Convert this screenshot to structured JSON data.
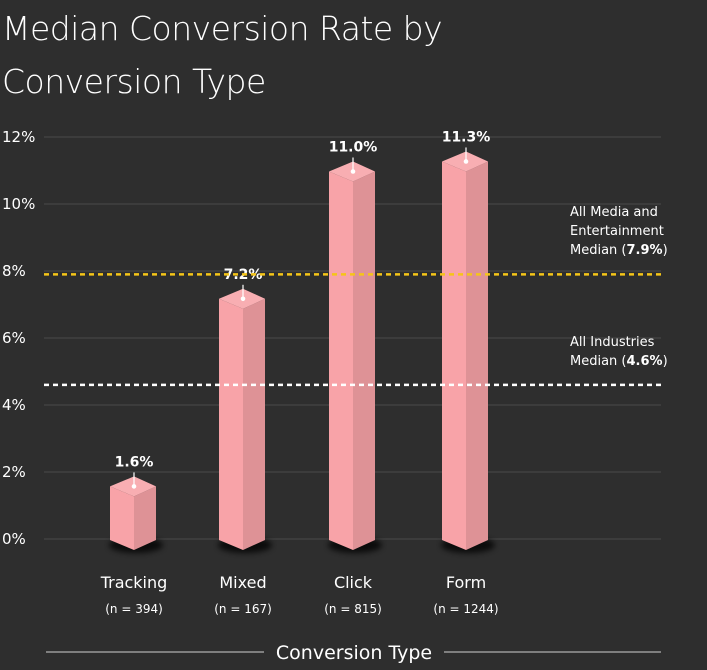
{
  "chart_data": {
    "type": "bar",
    "title": "Median Conversion Rate by Conversion Type",
    "xlabel": "Conversion Type",
    "ylabel": "",
    "ylim": [
      0,
      12
    ],
    "yticks": [
      "0%",
      "2%",
      "4%",
      "6%",
      "8%",
      "10%",
      "12%"
    ],
    "grid": true,
    "categories": [
      "Tracking",
      "Mixed",
      "Click",
      "Form"
    ],
    "counts": [
      "(n = 394)",
      "(n = 167)",
      "(n = 815)",
      "(n = 1244)"
    ],
    "values": [
      1.6,
      7.2,
      11.0,
      11.3
    ],
    "data_labels": [
      "1.6%",
      "7.2%",
      "11.0%",
      "11.3%"
    ],
    "bar_color": "#f8a3a8",
    "reference_lines": [
      {
        "value": 7.9,
        "color": "#f5c518",
        "label_lines": [
          "All Media and",
          "Entertainment",
          "Median ("
        ],
        "label_value": "7.9%",
        "label_suffix": ")"
      },
      {
        "value": 4.6,
        "color": "#ffffff",
        "label_lines": [
          "All Industries",
          "Median ("
        ],
        "label_value": "4.6%",
        "label_suffix": ")"
      }
    ]
  }
}
